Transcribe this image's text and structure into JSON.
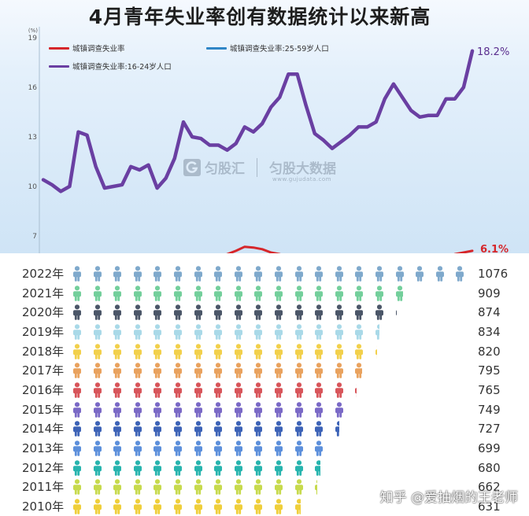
{
  "watermark": {
    "brand": "匀股汇",
    "product": "匀股大数据",
    "url": "www.gujudata.com"
  },
  "credit": "知乎 @爱抽烟的王老师",
  "chart_data": [
    {
      "type": "line",
      "title": "4月青年失业率创有数据统计以来新高",
      "yunit": "(%)",
      "yticks": [
        19,
        16,
        13,
        10,
        7
      ],
      "ylim": [
        6,
        19.5
      ],
      "grid": false,
      "legend": "top-left",
      "series": [
        {
          "name": "城镇调查失业率",
          "color": "#d6262a",
          "values": [
            null,
            null,
            null,
            null,
            null,
            null,
            null,
            null,
            null,
            null,
            null,
            null,
            null,
            null,
            null,
            null,
            null,
            null,
            null,
            null,
            null,
            5.9,
            6.1,
            6.35,
            6.3,
            6.2,
            6.0,
            5.9,
            null,
            null,
            null,
            null,
            null,
            null,
            null,
            null,
            null,
            null,
            null,
            null,
            null,
            null,
            null,
            null,
            null,
            null,
            null,
            5.9,
            6.0,
            6.1
          ]
        },
        {
          "name": "城镇调查失业率:25-59岁人口",
          "color": "#2f86c6",
          "values": []
        },
        {
          "name": "城镇调查失业率:16-24岁人口",
          "color": "#6a3fa2",
          "values": [
            10.4,
            10.1,
            9.7,
            10.0,
            13.3,
            13.1,
            11.2,
            9.9,
            10.0,
            10.1,
            11.2,
            11.0,
            11.3,
            9.9,
            10.5,
            11.7,
            13.9,
            13.0,
            12.9,
            12.5,
            12.5,
            12.2,
            12.6,
            13.6,
            13.3,
            13.8,
            14.8,
            15.4,
            16.8,
            16.8,
            14.9,
            13.2,
            12.8,
            12.3,
            12.7,
            13.1,
            13.6,
            13.6,
            13.9,
            15.3,
            16.2,
            15.4,
            14.6,
            14.2,
            14.3,
            14.3,
            15.3,
            15.3,
            16.0,
            18.2
          ]
        }
      ],
      "annotations": [
        {
          "text": "18.2%",
          "series": "城镇调查失业率:16-24岁人口",
          "color": "#5a2e8f"
        },
        {
          "text": "6.1%",
          "series": "城镇调查失业率",
          "color": "#d6262a"
        }
      ]
    },
    {
      "type": "bar",
      "marker": "person-icon",
      "categories": [
        "2022年",
        "2021年",
        "2020年",
        "2019年",
        "2018年",
        "2017年",
        "2016年",
        "2015年",
        "2014年",
        "2013年",
        "2012年",
        "2011年",
        "2010年"
      ],
      "values": [
        1076,
        909,
        874,
        834,
        820,
        795,
        765,
        749,
        727,
        699,
        680,
        662,
        631
      ],
      "colors": [
        "#7fa9cc",
        "#73cf9b",
        "#4b5668",
        "#a9d9e8",
        "#f2d04b",
        "#e9a25e",
        "#d8555a",
        "#7a69c6",
        "#3d63b7",
        "#5c8fdb",
        "#27b4ae",
        "#c7da4c",
        "#efcf3a"
      ]
    }
  ]
}
